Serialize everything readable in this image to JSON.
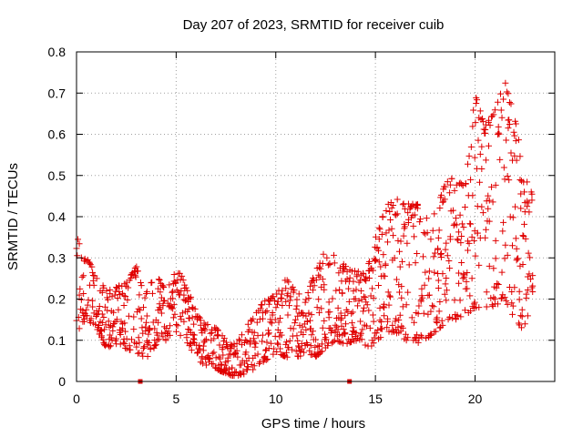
{
  "chart_data": {
    "type": "scatter",
    "title": "Day 207 of 2023, SRMTID for receiver cuib",
    "xlabel": "GPS time / hours",
    "ylabel": "SRMTID / TECUs",
    "xlim": [
      0,
      24
    ],
    "ylim": [
      0,
      0.8
    ],
    "x_ticks": [
      0,
      5,
      10,
      15,
      20
    ],
    "x_tick_labels": [
      "0",
      "5",
      "10",
      "15",
      "20"
    ],
    "y_ticks": [
      0,
      0.1,
      0.2,
      0.3,
      0.4,
      0.5,
      0.6,
      0.7,
      0.8
    ],
    "y_tick_labels": [
      "0",
      "0.1",
      "0.2",
      "0.3",
      "0.4",
      "0.5",
      "0.6",
      "0.7",
      "0.8"
    ],
    "grid": true,
    "marker": "+",
    "color": "#e00000",
    "x_axis_markers": [
      3.2,
      13.7
    ],
    "series": [
      {
        "name": "SRMTID",
        "envelope": {
          "x": [
            0.0,
            0.5,
            1.0,
            1.5,
            2.0,
            2.5,
            3.0,
            3.5,
            4.0,
            4.5,
            5.0,
            5.5,
            6.0,
            6.5,
            7.0,
            7.5,
            8.0,
            8.5,
            9.0,
            9.5,
            10.0,
            10.5,
            11.0,
            11.5,
            12.0,
            12.5,
            13.0,
            13.5,
            14.0,
            14.5,
            15.0,
            15.5,
            16.0,
            16.5,
            17.0,
            17.5,
            18.0,
            18.5,
            19.0,
            19.5,
            20.0,
            20.5,
            21.0,
            21.5,
            22.0,
            22.5,
            22.9
          ],
          "low": [
            0.12,
            0.15,
            0.13,
            0.08,
            0.09,
            0.08,
            0.07,
            0.05,
            0.09,
            0.1,
            0.12,
            0.1,
            0.05,
            0.04,
            0.03,
            0.02,
            0.01,
            0.02,
            0.03,
            0.05,
            0.07,
            0.06,
            0.05,
            0.07,
            0.06,
            0.08,
            0.1,
            0.09,
            0.1,
            0.08,
            0.09,
            0.12,
            0.12,
            0.1,
            0.09,
            0.1,
            0.12,
            0.14,
            0.15,
            0.16,
            0.18,
            0.17,
            0.18,
            0.2,
            0.15,
            0.12,
            0.22
          ],
          "high": [
            0.36,
            0.3,
            0.26,
            0.22,
            0.23,
            0.24,
            0.28,
            0.22,
            0.26,
            0.22,
            0.28,
            0.24,
            0.17,
            0.14,
            0.13,
            0.1,
            0.09,
            0.13,
            0.17,
            0.2,
            0.21,
            0.25,
            0.22,
            0.2,
            0.27,
            0.32,
            0.31,
            0.28,
            0.27,
            0.26,
            0.35,
            0.42,
            0.46,
            0.43,
            0.44,
            0.4,
            0.42,
            0.48,
            0.5,
            0.47,
            0.7,
            0.62,
            0.66,
            0.73,
            0.64,
            0.5,
            0.45
          ]
        }
      }
    ]
  }
}
